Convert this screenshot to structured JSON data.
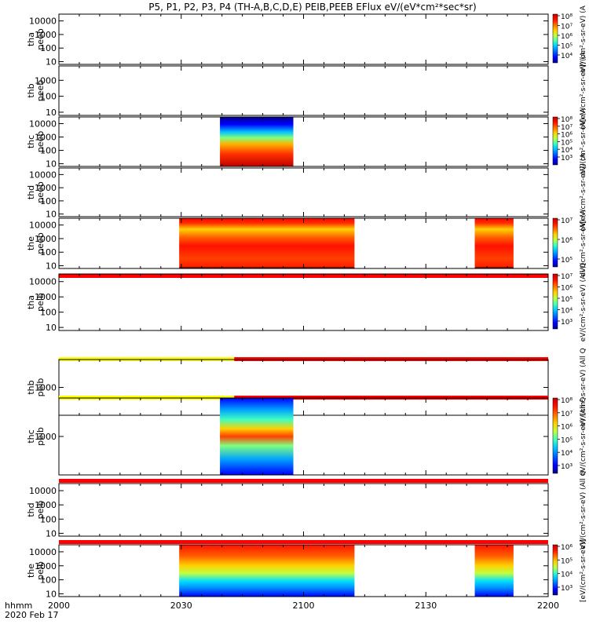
{
  "chart_data": {
    "type": "heatmap",
    "title": "P5, P1, P2, P3, P4 (TH-A,B,C,D,E) PEIB,PEEB EFlux eV/(eV*cm²*sec*sr)",
    "x_axis": {
      "ticks": [
        "2000",
        "2030",
        "2100",
        "2130",
        "2200"
      ],
      "tick_minutes": [
        0,
        30,
        60,
        90,
        120
      ],
      "range_minutes": [
        0,
        120
      ],
      "label_line1": "hhmm",
      "label_line2": "2020 Feb 17"
    },
    "panels": [
      {
        "ylabel1": "tha",
        "ylabel2": "peeb",
        "yticks": [
          "10",
          "100",
          "1000",
          "10000"
        ],
        "ylim_exp": [
          0.8,
          4.5
        ],
        "colorbar": {
          "ticks": [
            "10⁴",
            "10⁵",
            "10⁶",
            "10⁷",
            "10⁸"
          ],
          "label": "eV/(cm²-s-sr-eV) (A"
        },
        "status_bar_above": null,
        "data_blocks": []
      },
      {
        "ylabel1": "thb",
        "ylabel2": "peeb",
        "yticks": [
          "10",
          "100",
          "1000"
        ],
        "ylim_exp": [
          0.8,
          3.9
        ],
        "colorbar": null,
        "side_label": "(A[eV/cm²-s-sr-eV]) (A",
        "status_bar_above": null,
        "data_blocks": []
      },
      {
        "ylabel1": "thc",
        "ylabel2": "peeb",
        "yticks": [
          "10",
          "100",
          "1000",
          "10000"
        ],
        "ylim_exp": [
          0.8,
          4.5
        ],
        "colorbar": {
          "ticks": [
            "10³",
            "10⁴",
            "10⁵",
            "10⁶",
            "10⁷",
            "10⁸"
          ],
          "label": "eV/(cm²-s-sr-eV) (A"
        },
        "status_bar_above": null,
        "data_blocks": [
          {
            "kind": "electron",
            "start_min": 39.5,
            "end_min": 57.5,
            "top_exp": 4.5
          }
        ]
      },
      {
        "ylabel1": "thd",
        "ylabel2": "peeb",
        "yticks": [
          "10",
          "100",
          "1000",
          "10000"
        ],
        "ylim_exp": [
          0.8,
          4.5
        ],
        "colorbar": null,
        "side_label": "(A[eV/cm²-s-sr-eV]) (A",
        "status_bar_above": null,
        "data_blocks": []
      },
      {
        "ylabel1": "the",
        "ylabel2": "peeb",
        "yticks": [
          "10",
          "100",
          "1000",
          "10000"
        ],
        "ylim_exp": [
          0.8,
          4.5
        ],
        "colorbar": {
          "ticks": [
            "10⁵",
            "10⁶",
            "10⁷"
          ],
          "label": "eV/(cm²-s-sr-eV) (A"
        },
        "status_bar_above": null,
        "data_blocks": [
          {
            "kind": "electron-hot",
            "start_min": 29.5,
            "end_min": 72.5,
            "top_exp": 4.5
          },
          {
            "kind": "electron-hot",
            "start_min": 102,
            "end_min": 111.5,
            "top_exp": 4.5
          }
        ]
      },
      {
        "ylabel1": "tha",
        "ylabel2": "peib",
        "yticks": [
          "10",
          "100",
          "1000",
          "10000"
        ],
        "ylim_exp": [
          0.8,
          4.5
        ],
        "colorbar": {
          "ticks": [
            "10³",
            "10⁴",
            "10⁵",
            "10⁶",
            "10⁷"
          ],
          "label": "eV/(cm²-s-sr-eV) (All Q"
        },
        "status_bar_above": [
          {
            "from_min": 0,
            "to_min": 120,
            "color": "#ff0000"
          }
        ],
        "data_blocks": []
      },
      {
        "ylabel1": "thb",
        "ylabel2": "peib",
        "yticks": [
          "1000"
        ],
        "ylim_exp": [
          1.7,
          4.3
        ],
        "colorbar": null,
        "side_label": "eV/(cm²-s-sr-eV) (All Q",
        "status_bar_above": [
          {
            "from_min": 0,
            "to_min": 43,
            "color": "#ffff00"
          },
          {
            "from_min": 43,
            "to_min": 120,
            "color": "#ff0000"
          }
        ],
        "data_blocks": []
      },
      {
        "ylabel1": "thc",
        "ylabel2": "peib",
        "yticks": [
          "1000"
        ],
        "ylim_exp": [
          1.7,
          4.3
        ],
        "colorbar": {
          "ticks": [
            "10³",
            "10⁴",
            "10⁵",
            "10⁶",
            "10⁷",
            "10⁸"
          ],
          "label": "eV/(cm²-s-sr-eV) (All Q"
        },
        "status_bar_above": [
          {
            "from_min": 0,
            "to_min": 43,
            "color": "#ffff00"
          },
          {
            "from_min": 43,
            "to_min": 120,
            "color": "#ff0000"
          }
        ],
        "data_blocks": [
          {
            "kind": "ion",
            "start_min": 39.5,
            "end_min": 57.5,
            "top_exp": 4.3
          }
        ]
      },
      {
        "ylabel1": "thd",
        "ylabel2": "peib",
        "yticks": [
          "10",
          "100",
          "1000",
          "10000"
        ],
        "ylim_exp": [
          0.8,
          4.5
        ],
        "colorbar": null,
        "side_label": "eV/(cm²-s-sr-eV) (All Q",
        "status_bar_above": [
          {
            "from_min": 0,
            "to_min": 120,
            "color": "#ff0000"
          }
        ],
        "data_blocks": []
      },
      {
        "ylabel1": "the",
        "ylabel2": "peib",
        "yticks": [
          "10",
          "100",
          "1000",
          "10000"
        ],
        "ylim_exp": [
          0.8,
          4.5
        ],
        "colorbar": {
          "ticks": [
            "10³",
            "10⁴",
            "10⁵",
            "10⁶"
          ],
          "label": "[eV/(cm²-s-sr-eV)]"
        },
        "status_bar_above": [
          {
            "from_min": 0,
            "to_min": 120,
            "color": "#ff0000"
          }
        ],
        "data_blocks": [
          {
            "kind": "ion-hot",
            "start_min": 29.5,
            "end_min": 72.5,
            "top_exp": 4.5
          },
          {
            "kind": "ion-hot",
            "start_min": 102,
            "end_min": 111.5,
            "top_exp": 4.5
          }
        ]
      }
    ]
  }
}
